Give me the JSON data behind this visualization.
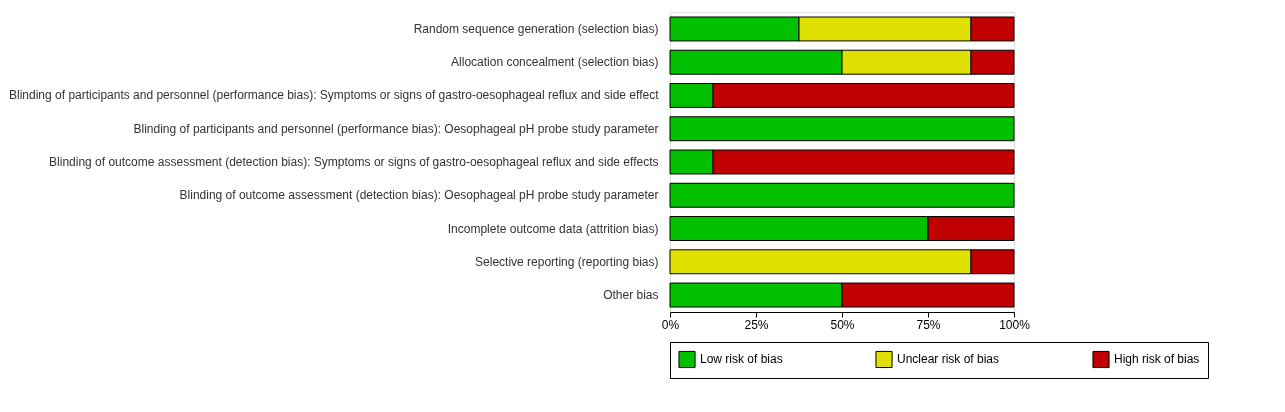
{
  "chart_data": {
    "type": "bar",
    "orientation": "horizontal",
    "stacked": true,
    "categories": [
      "Random sequence generation (selection bias)",
      "Allocation concealment (selection bias)",
      "Blinding of participants and personnel (performance bias): Symptoms or signs of gastro-oesophageal reflux and side effect",
      "Blinding of participants and personnel (performance bias): Oesophageal pH probe study parameter",
      "Blinding of outcome assessment (detection bias): Symptoms or signs of gastro-oesophageal reflux and side effects",
      "Blinding of outcome assessment (detection bias): Oesophageal pH probe study parameter",
      "Incomplete outcome data (attrition bias)",
      "Selective reporting (reporting bias)",
      "Other bias"
    ],
    "series": [
      {
        "name": "Low risk of bias",
        "color": "#00c000",
        "values": [
          37.5,
          50,
          12.5,
          100,
          12.5,
          100,
          75,
          0,
          50
        ]
      },
      {
        "name": "Unclear risk of bias",
        "color": "#e0e000",
        "values": [
          50,
          37.5,
          0,
          0,
          0,
          0,
          0,
          87.5,
          0
        ]
      },
      {
        "name": "High risk of bias",
        "color": "#c00000",
        "values": [
          12.5,
          12.5,
          87.5,
          0,
          87.5,
          0,
          25,
          12.5,
          50
        ]
      }
    ],
    "xlim": [
      0,
      100
    ],
    "xticks": [
      {
        "value": 0,
        "label": "0%"
      },
      {
        "value": 25,
        "label": "25%"
      },
      {
        "value": 50,
        "label": "50%"
      },
      {
        "value": 75,
        "label": "75%"
      },
      {
        "value": 100,
        "label": "100%"
      }
    ],
    "grid": false,
    "legend": "bottom"
  }
}
